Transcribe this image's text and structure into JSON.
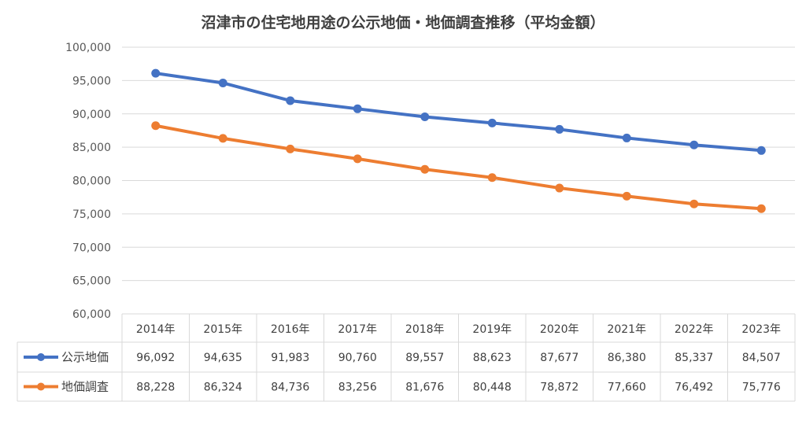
{
  "chart_data": {
    "type": "line",
    "title": "沼津市の住宅地用途の公示地価・地価調査推移（平均金額）",
    "categories": [
      "2014年",
      "2015年",
      "2016年",
      "2017年",
      "2018年",
      "2019年",
      "2020年",
      "2021年",
      "2022年",
      "2023年"
    ],
    "ylim": [
      60000,
      100000
    ],
    "yticks": [
      "60,000",
      "65,000",
      "70,000",
      "75,000",
      "80,000",
      "85,000",
      "90,000",
      "95,000",
      "100,000"
    ],
    "series": [
      {
        "name": "公示地価",
        "color": "#4472C4",
        "values": [
          96092,
          94635,
          91983,
          90760,
          89557,
          88623,
          87677,
          86380,
          85337,
          84507
        ],
        "labels": [
          "96,092",
          "94,635",
          "91,983",
          "90,760",
          "89,557",
          "88,623",
          "87,677",
          "86,380",
          "85,337",
          "84,507"
        ]
      },
      {
        "name": "地価調査",
        "color": "#ED7D31",
        "values": [
          88228,
          86324,
          84736,
          83256,
          81676,
          80448,
          78872,
          77660,
          76492,
          75776
        ],
        "labels": [
          "88,228",
          "86,324",
          "84,736",
          "83,256",
          "81,676",
          "80,448",
          "78,872",
          "77,660",
          "76,492",
          "75,776"
        ]
      }
    ],
    "grid": true,
    "legend": "data table"
  }
}
